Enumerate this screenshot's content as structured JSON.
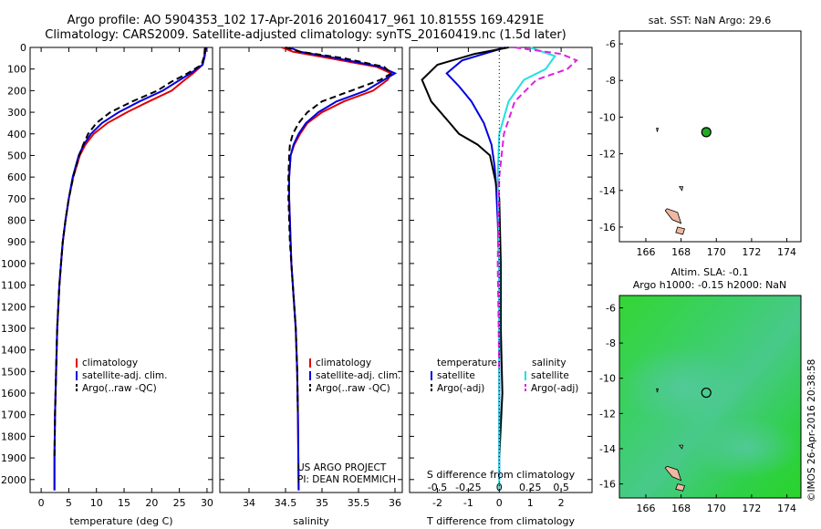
{
  "header": {
    "title_line1": "Argo profile: AO 5904353_102 17-Apr-2016 20160417_961 10.8155S 169.4291E",
    "title_line2": "Climatology: CARS2009. Satellite-adjusted climatology: synTS_20160419.nc (1.5d later)"
  },
  "colors": {
    "climatology": "#e00000",
    "satellite": "#0000e0",
    "argo": "#000000",
    "salinity_satellite": "#22e0e0",
    "salinity_argo": "#e020e0",
    "land": "#f0b8a0",
    "sla_green": "#22cc22"
  },
  "annotations": {
    "project": "US ARGO PROJECT",
    "pi": "PI: DEAN ROEMMICH",
    "copyright": "©IMOS 26-Apr-2016 20:38:58"
  },
  "chart_data": [
    {
      "type": "line",
      "id": "temperature",
      "xlabel": "temperature (deg C)",
      "xlim": [
        -2,
        31
      ],
      "xticks": [
        0,
        5,
        10,
        15,
        20,
        25,
        30
      ],
      "ylim": [
        0,
        2060
      ],
      "yticks": [
        0,
        100,
        200,
        300,
        400,
        500,
        600,
        700,
        800,
        900,
        1000,
        1100,
        1200,
        1300,
        1400,
        1500,
        1600,
        1700,
        1800,
        1900,
        2000
      ],
      "legend": [
        "climatology",
        "satellite-adj. clim.",
        "Argo(..raw -QC)"
      ],
      "series": [
        {
          "name": "climatology",
          "color": "climatology",
          "x": [
            29.6,
            29.5,
            29.2,
            27.5,
            25.5,
            23.6,
            19.5,
            15.5,
            12.0,
            9.5,
            8.0,
            7.0,
            5.8,
            5.0,
            4.4,
            3.9,
            3.6,
            3.3,
            3.1,
            2.9,
            2.8,
            2.7,
            2.6,
            2.5,
            2.4,
            2.4
          ],
          "y": [
            0,
            40,
            80,
            120,
            160,
            200,
            250,
            300,
            350,
            400,
            450,
            500,
            600,
            700,
            800,
            900,
            1000,
            1100,
            1200,
            1300,
            1400,
            1500,
            1600,
            1700,
            1900,
            2050
          ]
        },
        {
          "name": "satellite-adj. clim.",
          "color": "satellite",
          "x": [
            29.8,
            29.6,
            29.2,
            27.0,
            24.5,
            22.0,
            17.8,
            14.0,
            11.0,
            9.0,
            7.7,
            6.8,
            5.7,
            5.0,
            4.4,
            3.9,
            3.6,
            3.3,
            3.1,
            2.9,
            2.8,
            2.7,
            2.6,
            2.5,
            2.4,
            2.4
          ],
          "y": [
            0,
            40,
            80,
            120,
            160,
            200,
            250,
            300,
            350,
            400,
            450,
            500,
            600,
            700,
            800,
            900,
            1000,
            1100,
            1200,
            1300,
            1400,
            1500,
            1600,
            1700,
            1900,
            2050
          ]
        },
        {
          "name": "Argo(..raw -QC)",
          "color": "argo",
          "dash": true,
          "x": [
            29.7,
            29.5,
            29.0,
            26.5,
            23.5,
            21.0,
            16.5,
            12.5,
            10.0,
            8.5,
            7.6,
            6.9,
            5.8,
            5.0,
            4.4,
            3.9,
            3.6,
            3.3,
            3.1,
            2.9,
            2.8,
            2.7,
            2.6,
            2.5,
            2.4
          ],
          "y": [
            0,
            40,
            80,
            120,
            160,
            200,
            250,
            300,
            350,
            400,
            450,
            500,
            600,
            700,
            800,
            900,
            1000,
            1100,
            1200,
            1300,
            1400,
            1500,
            1600,
            1700,
            1900
          ]
        }
      ]
    },
    {
      "type": "line",
      "id": "salinity",
      "xlabel": "salinity",
      "xlim": [
        33.6,
        36.1
      ],
      "xticks": [
        34,
        34.5,
        35,
        35.5,
        36
      ],
      "ylim": [
        0,
        2060
      ],
      "legend": [
        "climatology",
        "satellite-adj. clim.",
        "Argo(..raw -QC)"
      ],
      "series": [
        {
          "name": "climatology",
          "color": "climatology",
          "x": [
            34.45,
            34.6,
            35.1,
            35.75,
            35.95,
            35.9,
            35.7,
            35.3,
            35.0,
            34.8,
            34.7,
            34.62,
            34.57,
            34.55,
            34.55,
            34.56,
            34.57,
            34.58,
            34.6,
            34.62,
            34.64,
            34.65,
            34.66,
            34.67,
            34.68
          ],
          "y": [
            0,
            20,
            50,
            90,
            120,
            150,
            200,
            250,
            300,
            350,
            400,
            450,
            500,
            600,
            700,
            800,
            900,
            1000,
            1100,
            1200,
            1300,
            1400,
            1500,
            1700,
            2050
          ]
        },
        {
          "name": "satellite-adj. clim.",
          "color": "satellite",
          "x": [
            34.55,
            34.7,
            35.2,
            35.8,
            36.0,
            35.85,
            35.6,
            35.2,
            34.95,
            34.78,
            34.68,
            34.61,
            34.57,
            34.55,
            34.55,
            34.56,
            34.57,
            34.58,
            34.6,
            34.62,
            34.64,
            34.65,
            34.66,
            34.67,
            34.68
          ],
          "y": [
            0,
            20,
            50,
            90,
            120,
            150,
            200,
            250,
            300,
            350,
            400,
            450,
            500,
            600,
            700,
            800,
            900,
            1000,
            1100,
            1200,
            1300,
            1400,
            1500,
            1700,
            2050
          ]
        },
        {
          "name": "Argo(..raw -QC)",
          "color": "argo",
          "dash": true,
          "x": [
            34.5,
            34.7,
            35.3,
            35.85,
            35.95,
            35.8,
            35.4,
            35.0,
            34.8,
            34.68,
            34.6,
            34.56,
            34.55,
            34.54,
            34.54,
            34.55,
            34.56,
            34.58,
            34.6,
            34.62,
            34.64,
            34.65,
            34.66,
            34.67
          ],
          "y": [
            0,
            20,
            50,
            90,
            120,
            150,
            200,
            250,
            300,
            350,
            400,
            450,
            500,
            600,
            700,
            800,
            900,
            1000,
            1100,
            1200,
            1300,
            1400,
            1500,
            1700
          ]
        }
      ]
    },
    {
      "type": "line",
      "id": "difference",
      "xlabel_bottom": "T difference from climatology",
      "xlabel_top": "S difference from climatology",
      "xlim": [
        -2.9,
        3.0
      ],
      "xticks": [
        -2,
        -1,
        0,
        1,
        2
      ],
      "xticks_top": [
        "-0.5",
        "-0.25",
        "0",
        "0.25",
        "0.5"
      ],
      "ylim": [
        0,
        2060
      ],
      "legend_headers": [
        "temperature",
        "salinity"
      ],
      "legend": [
        "satellite",
        "Argo(-adj)",
        "satellite",
        "Argo(-adj)"
      ],
      "series": [
        {
          "name": "satellite",
          "quantity": "temperature",
          "color": "satellite",
          "x": [
            0.2,
            -0.5,
            -1.2,
            -1.7,
            -1.3,
            -0.9,
            -0.5,
            -0.25,
            -0.15,
            -0.1,
            -0.05,
            0.0,
            0.0,
            0.0,
            0.0
          ],
          "y": [
            0,
            30,
            60,
            120,
            180,
            250,
            350,
            450,
            550,
            650,
            800,
            1000,
            1300,
            1600,
            2000
          ]
        },
        {
          "name": "Argo(-adj)",
          "quantity": "temperature",
          "color": "argo",
          "x": [
            0.3,
            -0.8,
            -2.0,
            -2.5,
            -2.2,
            -1.6,
            -1.3,
            -0.7,
            -0.3,
            -0.15,
            0.0,
            0.05,
            0.05,
            0.1,
            0.0
          ],
          "y": [
            0,
            30,
            80,
            150,
            250,
            350,
            400,
            450,
            500,
            600,
            700,
            1000,
            1300,
            1600,
            1900
          ]
        },
        {
          "name": "satellite",
          "quantity": "salinity",
          "color": "salinity_satellite",
          "x": [
            1.0,
            1.8,
            1.5,
            0.8,
            0.3,
            0.0,
            -0.05,
            0.0,
            0.0,
            0.0
          ],
          "y": [
            0,
            40,
            100,
            150,
            250,
            400,
            600,
            1000,
            1500,
            2050
          ]
        },
        {
          "name": "Argo(-adj)",
          "quantity": "salinity",
          "color": "salinity_argo",
          "dash": true,
          "x": [
            0.5,
            2.0,
            2.5,
            2.2,
            1.2,
            0.5,
            0.15,
            0.0,
            -0.05,
            0.0
          ],
          "y": [
            0,
            30,
            60,
            100,
            150,
            250,
            400,
            600,
            1000,
            1500
          ]
        }
      ]
    },
    {
      "type": "map",
      "id": "sst-map",
      "title": "sat. SST: NaN Argo: 29.6",
      "xlim": [
        164.5,
        174.8
      ],
      "ylim": [
        -16.8,
        -5.3
      ],
      "xticks": [
        166,
        168,
        170,
        172,
        174
      ],
      "yticks": [
        -6,
        -8,
        -10,
        -12,
        -14,
        -16
      ],
      "marker": {
        "lon": 169.43,
        "lat": -10.82,
        "fill": "#22aa22"
      },
      "land": [
        {
          "lon": [
            167.2,
            167.8,
            168.0,
            167.5,
            167.1
          ],
          "lat": [
            -15.0,
            -15.2,
            -15.8,
            -15.6,
            -15.1
          ]
        },
        {
          "lon": [
            167.8,
            168.2,
            168.1,
            167.7
          ],
          "lat": [
            -16.0,
            -16.1,
            -16.4,
            -16.3
          ]
        },
        {
          "lon": [
            167.9,
            168.1,
            168.05
          ],
          "lat": [
            -13.8,
            -13.8,
            -14.0
          ]
        },
        {
          "lon": [
            166.6,
            166.7,
            166.65
          ],
          "lat": [
            -10.6,
            -10.6,
            -10.8
          ]
        }
      ]
    },
    {
      "type": "map",
      "id": "sla-map",
      "title_line1": "Altim. SLA: -0.1",
      "title_line2": "Argo h1000: -0.15 h2000: NaN",
      "xlim": [
        164.5,
        174.8
      ],
      "ylim": [
        -16.8,
        -5.3
      ],
      "xticks": [
        166,
        168,
        170,
        172,
        174
      ],
      "yticks": [
        -6,
        -8,
        -10,
        -12,
        -14,
        -16
      ],
      "marker": {
        "lon": 169.43,
        "lat": -10.82,
        "fill": "none"
      },
      "land": [
        {
          "lon": [
            167.2,
            167.8,
            168.0,
            167.5,
            167.1
          ],
          "lat": [
            -15.0,
            -15.2,
            -15.8,
            -15.6,
            -15.1
          ]
        },
        {
          "lon": [
            167.8,
            168.2,
            168.1,
            167.7
          ],
          "lat": [
            -16.0,
            -16.1,
            -16.4,
            -16.3
          ]
        },
        {
          "lon": [
            167.9,
            168.1,
            168.05
          ],
          "lat": [
            -13.8,
            -13.8,
            -14.0
          ]
        },
        {
          "lon": [
            166.6,
            166.7,
            166.65
          ],
          "lat": [
            -10.6,
            -10.6,
            -10.8
          ]
        }
      ]
    }
  ]
}
